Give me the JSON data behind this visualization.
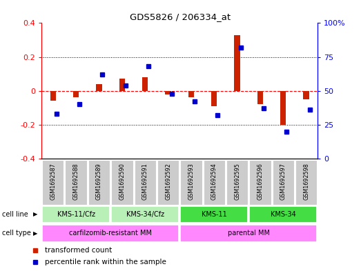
{
  "title": "GDS5826 / 206334_at",
  "samples": [
    "GSM1692587",
    "GSM1692588",
    "GSM1692589",
    "GSM1692590",
    "GSM1692591",
    "GSM1692592",
    "GSM1692593",
    "GSM1692594",
    "GSM1692595",
    "GSM1692596",
    "GSM1692597",
    "GSM1692598"
  ],
  "transformed_count": [
    -0.06,
    -0.04,
    0.04,
    0.07,
    0.08,
    -0.02,
    -0.04,
    -0.09,
    0.33,
    -0.08,
    -0.2,
    -0.05
  ],
  "percentile_rank": [
    33,
    40,
    62,
    54,
    68,
    48,
    42,
    32,
    82,
    37,
    20,
    36
  ],
  "cell_line_groups": [
    {
      "label": "KMS-11/Cfz",
      "start": 0,
      "end": 3,
      "color": "#b8f0b8"
    },
    {
      "label": "KMS-34/Cfz",
      "start": 3,
      "end": 6,
      "color": "#b8f0b8"
    },
    {
      "label": "KMS-11",
      "start": 6,
      "end": 9,
      "color": "#44dd44"
    },
    {
      "label": "KMS-34",
      "start": 9,
      "end": 12,
      "color": "#44dd44"
    }
  ],
  "cell_type_groups": [
    {
      "label": "carfilzomib-resistant MM",
      "start": 0,
      "end": 6,
      "color": "#ff88ff"
    },
    {
      "label": "parental MM",
      "start": 6,
      "end": 12,
      "color": "#ff88ff"
    }
  ],
  "bar_color_red": "#cc2200",
  "bar_color_blue": "#0000cc",
  "ylim_left": [
    -0.4,
    0.4
  ],
  "ylim_right": [
    0,
    100
  ],
  "yticks_left": [
    -0.4,
    -0.2,
    0.0,
    0.2,
    0.4
  ],
  "ytick_labels_left": [
    "-0.4",
    "-0.2",
    "0",
    "0.2",
    "0.4"
  ],
  "yticks_right": [
    0,
    25,
    50,
    75,
    100
  ],
  "ytick_labels_right": [
    "0",
    "25",
    "50",
    "75",
    "100%"
  ],
  "legend_red": "transformed count",
  "legend_blue": "percentile rank within the sample",
  "sample_box_color": "#cccccc",
  "bar_width": 0.25
}
